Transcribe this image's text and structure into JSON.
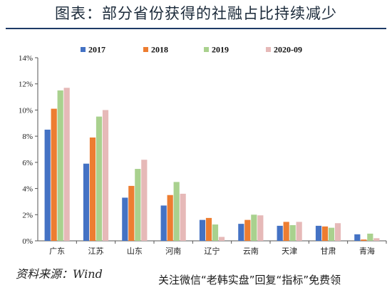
{
  "header": {
    "title": "图表：部分省份获得的社融占比持续减少"
  },
  "footer": {
    "source": "资料来源：Wind",
    "watermark": "关注微信“老韩实盘”回复“指标”免费领"
  },
  "colors": {
    "series": [
      "#4472c4",
      "#ed7d31",
      "#a9d18e",
      "#e6b9b8"
    ],
    "title_rule": "#1e3a66"
  },
  "chart_data": {
    "type": "bar",
    "title": "",
    "xlabel": "",
    "ylabel": "",
    "ylim": [
      0,
      14
    ],
    "yticks": [
      "0%",
      "2%",
      "4%",
      "6%",
      "8%",
      "10%",
      "12%",
      "14%"
    ],
    "grid": false,
    "legend": "top",
    "categories": [
      "广东",
      "江苏",
      "山东",
      "河南",
      "辽宁",
      "云南",
      "天津",
      "甘肃",
      "青海"
    ],
    "series": [
      {
        "name": "2017",
        "values": [
          8.5,
          5.9,
          3.3,
          2.7,
          1.6,
          1.3,
          1.15,
          1.15,
          0.5
        ]
      },
      {
        "name": "2018",
        "values": [
          10.1,
          7.9,
          4.2,
          3.5,
          1.75,
          1.6,
          1.45,
          1.1,
          0.1
        ]
      },
      {
        "name": "2019",
        "values": [
          11.5,
          9.5,
          5.5,
          4.5,
          1.25,
          2.0,
          1.2,
          1.0,
          0.55
        ]
      },
      {
        "name": "2020-09",
        "values": [
          11.7,
          10.0,
          6.2,
          3.6,
          0.3,
          1.95,
          1.45,
          1.35,
          0.2
        ]
      }
    ]
  }
}
